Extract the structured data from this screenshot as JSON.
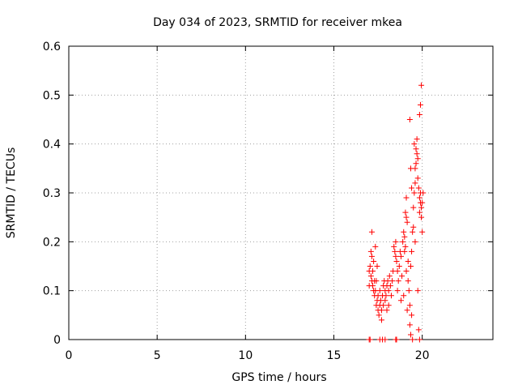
{
  "chart_data": {
    "type": "scatter",
    "title": "Day 034 of 2023, SRMTID for receiver mkea",
    "xlabel": "GPS time / hours",
    "ylabel": "SRMTID / TECUs",
    "xlim": [
      0,
      24
    ],
    "ylim": [
      0,
      0.6
    ],
    "x_ticks": [
      0,
      5,
      10,
      15,
      20
    ],
    "x_tick_labels": [
      "0",
      "5",
      "10",
      "15",
      "20"
    ],
    "y_ticks": [
      0,
      0.1,
      0.2,
      0.3,
      0.4,
      0.5,
      0.6
    ],
    "y_tick_labels": [
      "0",
      "0.1",
      "0.2",
      "0.3",
      "0.4",
      "0.5",
      "0.6"
    ],
    "grid": true,
    "marker": "+",
    "color": "#ff0000",
    "series": [
      {
        "name": "SRMTID",
        "points": [
          [
            17.0,
            0.0
          ],
          [
            17.05,
            0.0
          ],
          [
            17.6,
            0.0
          ],
          [
            17.75,
            0.0
          ],
          [
            17.9,
            0.0
          ],
          [
            18.5,
            0.0
          ],
          [
            18.55,
            0.0
          ],
          [
            17.0,
            0.11
          ],
          [
            17.0,
            0.14
          ],
          [
            17.05,
            0.15
          ],
          [
            17.1,
            0.13
          ],
          [
            17.1,
            0.18
          ],
          [
            17.15,
            0.17
          ],
          [
            17.15,
            0.12
          ],
          [
            17.2,
            0.11
          ],
          [
            17.2,
            0.14
          ],
          [
            17.25,
            0.1
          ],
          [
            17.25,
            0.16
          ],
          [
            17.3,
            0.12
          ],
          [
            17.3,
            0.09
          ],
          [
            17.35,
            0.1
          ],
          [
            17.4,
            0.07
          ],
          [
            17.4,
            0.12
          ],
          [
            17.45,
            0.08
          ],
          [
            17.5,
            0.06
          ],
          [
            17.5,
            0.09
          ],
          [
            17.55,
            0.05
          ],
          [
            17.6,
            0.07
          ],
          [
            17.6,
            0.1
          ],
          [
            17.65,
            0.08
          ],
          [
            17.7,
            0.04
          ],
          [
            17.7,
            0.06
          ],
          [
            17.75,
            0.09
          ],
          [
            17.8,
            0.07
          ],
          [
            17.8,
            0.11
          ],
          [
            17.85,
            0.12
          ],
          [
            17.9,
            0.08
          ],
          [
            17.9,
            0.1
          ],
          [
            17.95,
            0.09
          ],
          [
            18.0,
            0.06
          ],
          [
            18.0,
            0.11
          ],
          [
            18.05,
            0.12
          ],
          [
            18.1,
            0.07
          ],
          [
            18.1,
            0.1
          ],
          [
            18.15,
            0.13
          ],
          [
            18.2,
            0.11
          ],
          [
            18.25,
            0.09
          ],
          [
            18.3,
            0.12
          ],
          [
            18.35,
            0.14
          ],
          [
            18.4,
            0.19
          ],
          [
            18.45,
            0.18
          ],
          [
            18.5,
            0.17
          ],
          [
            18.5,
            0.2
          ],
          [
            18.55,
            0.16
          ],
          [
            18.6,
            0.14
          ],
          [
            18.65,
            0.12
          ],
          [
            18.7,
            0.15
          ],
          [
            18.75,
            0.18
          ],
          [
            18.8,
            0.17
          ],
          [
            18.85,
            0.13
          ],
          [
            18.9,
            0.2
          ],
          [
            18.95,
            0.22
          ],
          [
            19.0,
            0.18
          ],
          [
            19.0,
            0.21
          ],
          [
            19.05,
            0.26
          ],
          [
            19.05,
            0.19
          ],
          [
            19.1,
            0.25
          ],
          [
            19.1,
            0.29
          ],
          [
            19.15,
            0.24
          ],
          [
            19.2,
            0.16
          ],
          [
            19.2,
            0.12
          ],
          [
            19.25,
            0.1
          ],
          [
            19.3,
            0.07
          ],
          [
            19.35,
            0.15
          ],
          [
            19.4,
            0.18
          ],
          [
            19.45,
            0.22
          ],
          [
            19.5,
            0.27
          ],
          [
            19.5,
            0.23
          ],
          [
            19.55,
            0.3
          ],
          [
            19.6,
            0.32
          ],
          [
            19.6,
            0.35
          ],
          [
            19.65,
            0.36
          ],
          [
            19.65,
            0.39
          ],
          [
            19.7,
            0.38
          ],
          [
            19.7,
            0.41
          ],
          [
            19.75,
            0.37
          ],
          [
            19.75,
            0.33
          ],
          [
            19.8,
            0.31
          ],
          [
            19.85,
            0.29
          ],
          [
            19.85,
            0.26
          ],
          [
            19.9,
            0.28
          ],
          [
            19.9,
            0.3
          ],
          [
            19.95,
            0.27
          ],
          [
            19.95,
            0.25
          ],
          [
            20.0,
            0.28
          ],
          [
            20.0,
            0.22
          ],
          [
            20.05,
            0.3
          ],
          [
            19.3,
            0.45
          ],
          [
            19.35,
            0.35
          ],
          [
            19.4,
            0.31
          ],
          [
            19.3,
            0.03
          ],
          [
            19.35,
            0.01
          ],
          [
            19.45,
            0.0
          ],
          [
            19.85,
            0.46
          ],
          [
            19.9,
            0.48
          ],
          [
            19.95,
            0.52
          ],
          [
            19.8,
            0.02
          ],
          [
            19.85,
            0.0
          ],
          [
            19.75,
            0.1
          ],
          [
            19.55,
            0.4
          ],
          [
            19.6,
            0.2
          ],
          [
            19.1,
            0.14
          ],
          [
            18.95,
            0.09
          ],
          [
            19.4,
            0.05
          ],
          [
            17.15,
            0.22
          ],
          [
            17.35,
            0.19
          ],
          [
            17.45,
            0.15
          ],
          [
            18.6,
            0.1
          ],
          [
            18.8,
            0.08
          ],
          [
            19.15,
            0.06
          ]
        ]
      }
    ]
  }
}
